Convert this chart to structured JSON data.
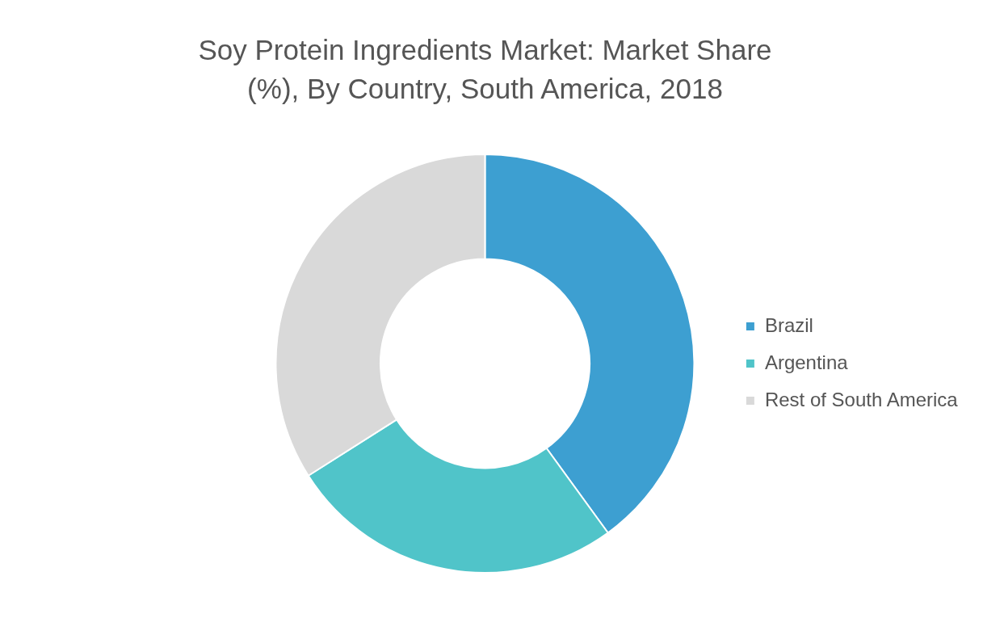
{
  "chart_data": {
    "type": "donut",
    "title": "Soy Protein Ingredients Market: Market Share (%), By Country, South America, 2018",
    "categories": [
      "Brazil",
      "Argentina",
      "Rest of South America"
    ],
    "values": [
      40,
      26,
      34
    ],
    "colors": [
      "#3d9fd1",
      "#50c4c9",
      "#d9d9d9"
    ],
    "legend": "right"
  }
}
